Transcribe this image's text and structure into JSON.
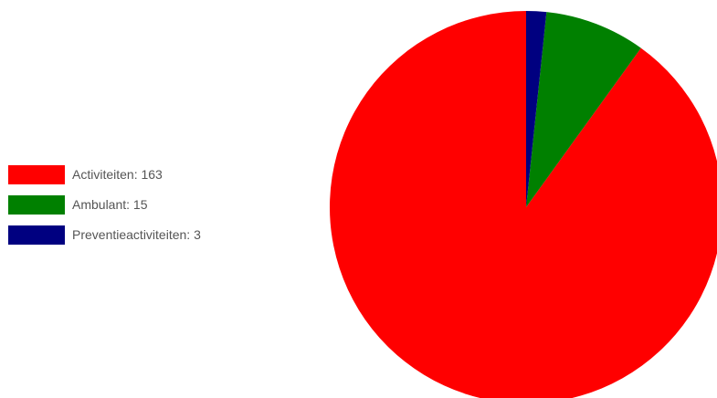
{
  "chart_data": {
    "type": "pie",
    "title": "",
    "categories": [
      "Activiteiten",
      "Ambulant",
      "Preventieactiviteiten"
    ],
    "values": [
      163,
      15,
      3
    ],
    "colors": [
      "#ff0000",
      "#008000",
      "#000080"
    ],
    "legend_labels": [
      "Activiteiten: 163",
      "Ambulant: 15",
      "Preventieactiviteiten: 3"
    ],
    "legend_position": "left",
    "start_angle": "top",
    "direction": "counterclockwise"
  }
}
